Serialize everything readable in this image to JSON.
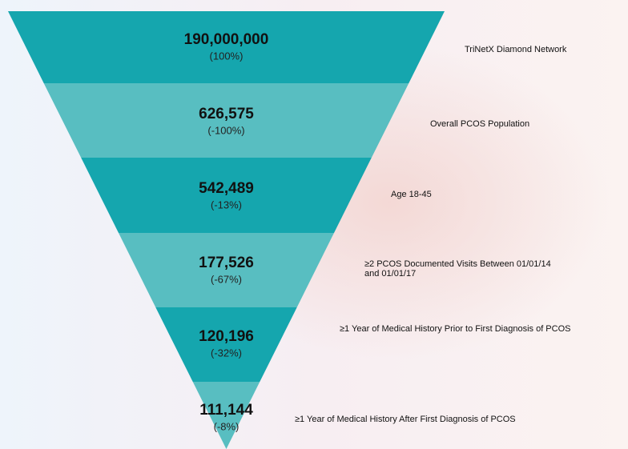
{
  "stages": [
    {
      "count": "190,000,000",
      "change": "(100%)",
      "label": [
        "TriNetX Diamond Network"
      ]
    },
    {
      "count": "626,575",
      "change": "(-100%)",
      "label": [
        "Overall PCOS Population"
      ]
    },
    {
      "count": "542,489",
      "change": "(-13%)",
      "label": [
        "Age 18-45"
      ]
    },
    {
      "count": "177,526",
      "change": "(-67%)",
      "label": [
        "≥2 PCOS Documented Visits Between 01/01/14",
        "and 01/01/17"
      ]
    },
    {
      "count": "120,196",
      "change": "(-32%)",
      "label": [
        "≥1 Year of Medical History Prior to First Diagnosis of PCOS"
      ]
    },
    {
      "count": "111,144",
      "change": "(-8%)",
      "label": [
        "≥1 Year of Medical History After First Diagnosis of PCOS"
      ]
    }
  ]
}
